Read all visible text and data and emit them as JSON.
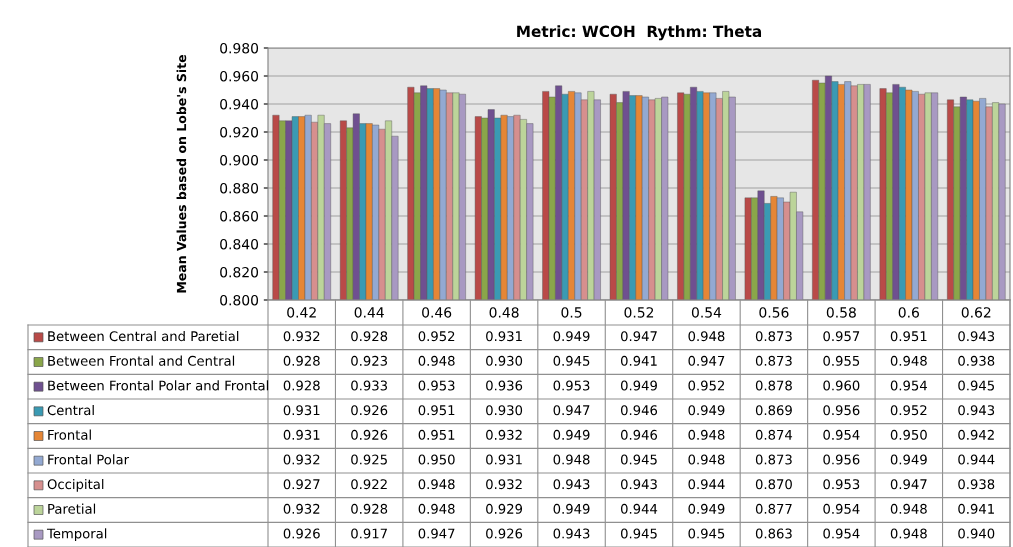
{
  "chart_data": {
    "type": "bar",
    "title": "Metric: WCOH  Rythm: Theta",
    "ylabel": "Mean Values based on Lobe's Site",
    "categories": [
      "0.42",
      "0.44",
      "0.46",
      "0.48",
      "0.5",
      "0.52",
      "0.54",
      "0.56",
      "0.58",
      "0.6",
      "0.62"
    ],
    "series": [
      {
        "name": "Between Central and Paretial",
        "color": "#b94a48",
        "values": [
          0.932,
          0.928,
          0.952,
          0.931,
          0.949,
          0.947,
          0.948,
          0.873,
          0.957,
          0.951,
          0.943
        ],
        "value_labels": [
          "0.932",
          "0.928",
          "0.952",
          "0.931",
          "0.949",
          "0.947",
          "0.948",
          "0.873",
          "0.957",
          "0.951",
          "0.943"
        ]
      },
      {
        "name": "Between Frontal and Central",
        "color": "#8aa64a",
        "values": [
          0.928,
          0.923,
          0.948,
          0.93,
          0.945,
          0.941,
          0.947,
          0.873,
          0.955,
          0.948,
          0.938
        ],
        "value_labels": [
          "0.928",
          "0.923",
          "0.948",
          "0.930",
          "0.945",
          "0.941",
          "0.947",
          "0.873",
          "0.955",
          "0.948",
          "0.938"
        ]
      },
      {
        "name": "Between Frontal Polar and Frontal",
        "color": "#6f5090",
        "values": [
          0.928,
          0.933,
          0.953,
          0.936,
          0.953,
          0.949,
          0.952,
          0.878,
          0.96,
          0.954,
          0.945
        ],
        "value_labels": [
          "0.928",
          "0.933",
          "0.953",
          "0.936",
          "0.953",
          "0.949",
          "0.952",
          "0.878",
          "0.960",
          "0.954",
          "0.945"
        ]
      },
      {
        "name": "Central",
        "color": "#3a9ab3",
        "values": [
          0.931,
          0.926,
          0.951,
          0.93,
          0.947,
          0.946,
          0.949,
          0.869,
          0.956,
          0.952,
          0.943
        ],
        "value_labels": [
          "0.931",
          "0.926",
          "0.951",
          "0.930",
          "0.947",
          "0.946",
          "0.949",
          "0.869",
          "0.956",
          "0.952",
          "0.943"
        ]
      },
      {
        "name": "Frontal",
        "color": "#e58636",
        "values": [
          0.931,
          0.926,
          0.951,
          0.932,
          0.949,
          0.946,
          0.948,
          0.874,
          0.954,
          0.95,
          0.942
        ],
        "value_labels": [
          "0.931",
          "0.926",
          "0.951",
          "0.932",
          "0.949",
          "0.946",
          "0.948",
          "0.874",
          "0.954",
          "0.950",
          "0.942"
        ]
      },
      {
        "name": "Frontal Polar",
        "color": "#93a9d2",
        "values": [
          0.932,
          0.925,
          0.95,
          0.931,
          0.948,
          0.945,
          0.948,
          0.873,
          0.956,
          0.949,
          0.944
        ],
        "value_labels": [
          "0.932",
          "0.925",
          "0.950",
          "0.931",
          "0.948",
          "0.945",
          "0.948",
          "0.873",
          "0.956",
          "0.949",
          "0.944"
        ]
      },
      {
        "name": "Occipital",
        "color": "#d68f8e",
        "values": [
          0.927,
          0.922,
          0.948,
          0.932,
          0.943,
          0.943,
          0.944,
          0.87,
          0.953,
          0.947,
          0.938
        ],
        "value_labels": [
          "0.927",
          "0.922",
          "0.948",
          "0.932",
          "0.943",
          "0.943",
          "0.944",
          "0.870",
          "0.953",
          "0.947",
          "0.938"
        ]
      },
      {
        "name": "Paretial",
        "color": "#bcd49a",
        "values": [
          0.932,
          0.928,
          0.948,
          0.929,
          0.949,
          0.944,
          0.949,
          0.877,
          0.954,
          0.948,
          0.941
        ],
        "value_labels": [
          "0.932",
          "0.928",
          "0.948",
          "0.929",
          "0.949",
          "0.944",
          "0.949",
          "0.877",
          "0.954",
          "0.948",
          "0.941"
        ]
      },
      {
        "name": "Temporal",
        "color": "#a899c2",
        "values": [
          0.926,
          0.917,
          0.947,
          0.926,
          0.943,
          0.945,
          0.945,
          0.863,
          0.954,
          0.948,
          0.94
        ],
        "value_labels": [
          "0.926",
          "0.917",
          "0.947",
          "0.926",
          "0.943",
          "0.945",
          "0.945",
          "0.863",
          "0.954",
          "0.948",
          "0.940"
        ]
      }
    ],
    "ylim": [
      0.8,
      0.98
    ],
    "yticks": [
      {
        "value": 0.8,
        "label": "0.800"
      },
      {
        "value": 0.82,
        "label": "0.820"
      },
      {
        "value": 0.84,
        "label": "0.840"
      },
      {
        "value": 0.86,
        "label": "0.860"
      },
      {
        "value": 0.88,
        "label": "0.880"
      },
      {
        "value": 0.9,
        "label": "0.900"
      },
      {
        "value": 0.92,
        "label": "0.920"
      },
      {
        "value": 0.94,
        "label": "0.940"
      },
      {
        "value": 0.96,
        "label": "0.960"
      },
      {
        "value": 0.98,
        "label": "0.980"
      }
    ],
    "grid": "y",
    "legend": "bottom"
  }
}
